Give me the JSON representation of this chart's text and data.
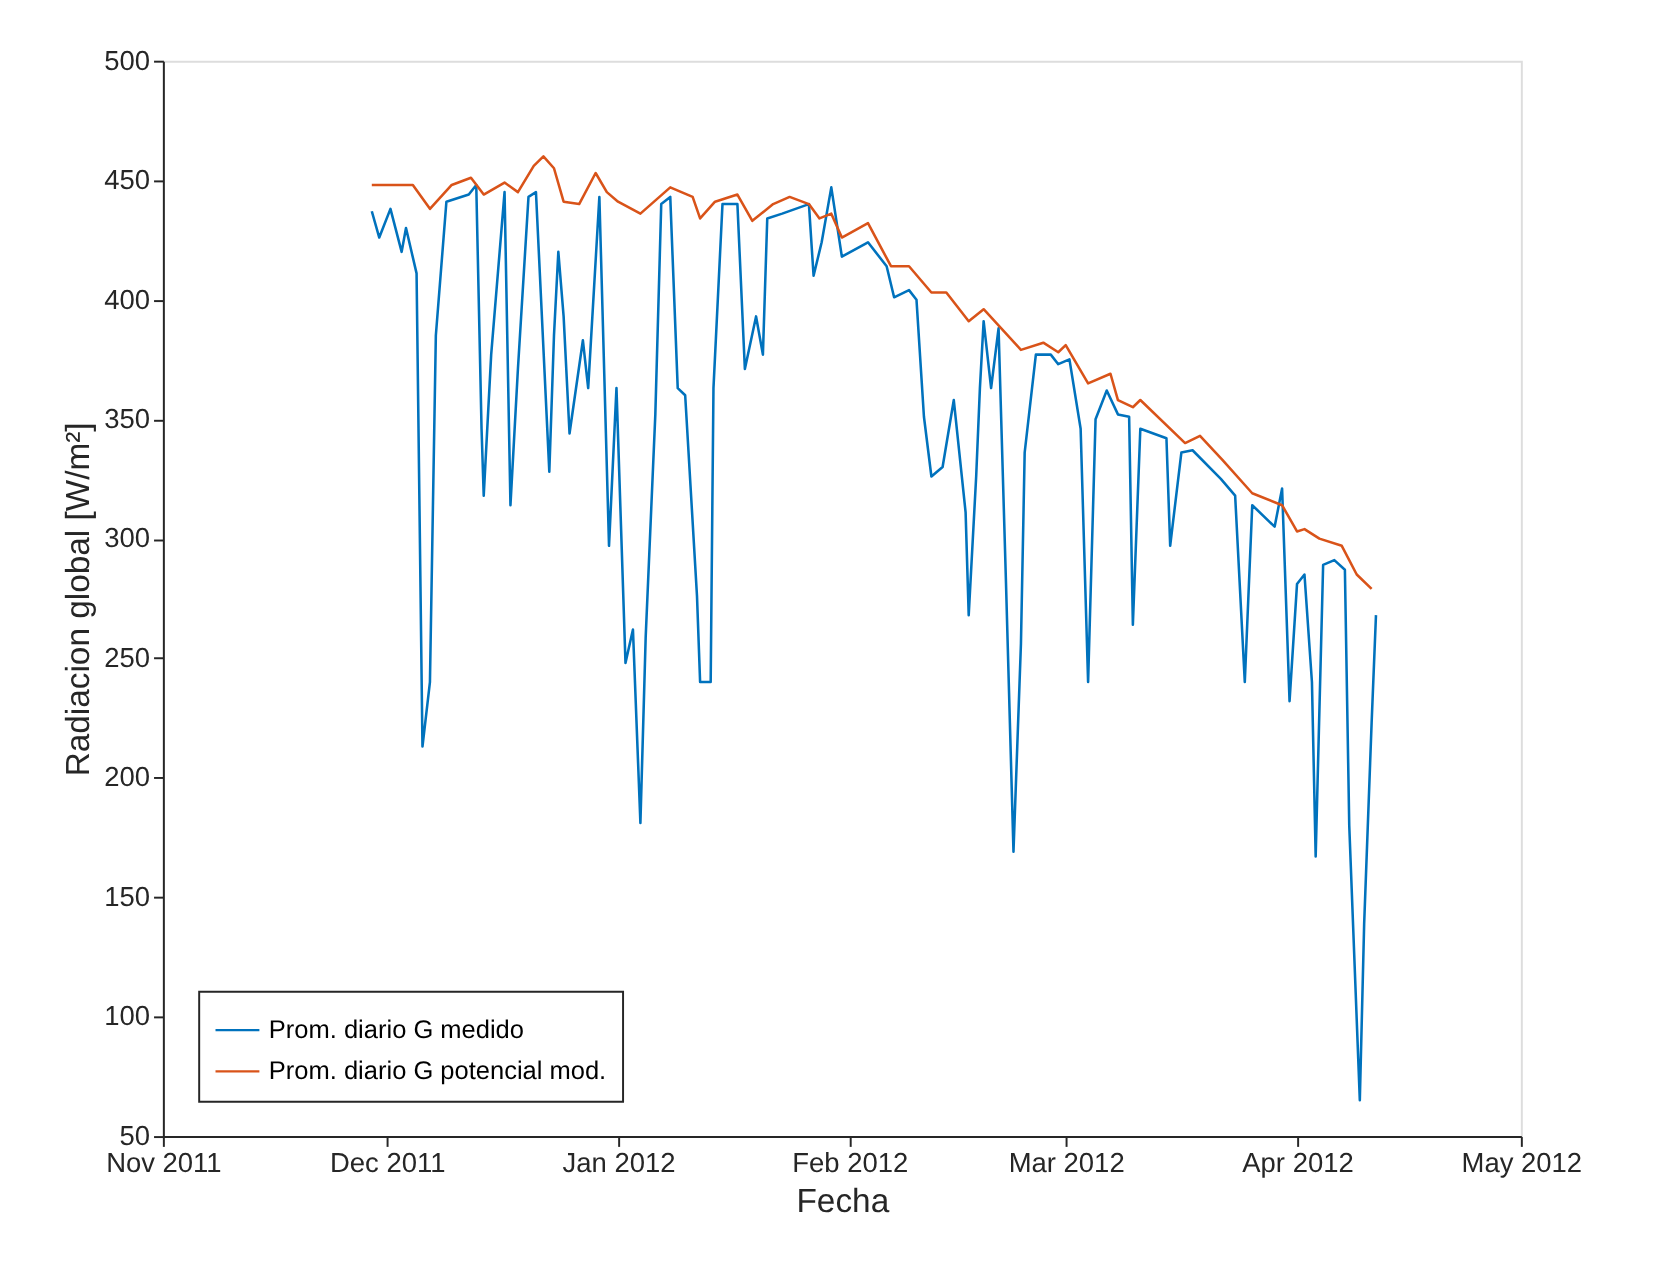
{
  "chart_data": {
    "type": "line",
    "xlabel": "Fecha",
    "ylabel": "Radiacion global [W/m²]",
    "xlim": [
      "2011-11-01",
      "2012-05-01"
    ],
    "xticks": [
      {
        "value": "2011-11-01",
        "label": "Nov 2011"
      },
      {
        "value": "2011-12-01",
        "label": "Dec 2011"
      },
      {
        "value": "2012-01-01",
        "label": "Jan 2012"
      },
      {
        "value": "2012-02-01",
        "label": "Feb 2012"
      },
      {
        "value": "2012-03-01",
        "label": "Mar 2012"
      },
      {
        "value": "2012-04-01",
        "label": "Apr 2012"
      },
      {
        "value": "2012-05-01",
        "label": "May 2012"
      }
    ],
    "ylim": [
      50,
      500
    ],
    "yticks": [
      50,
      100,
      150,
      200,
      250,
      300,
      350,
      400,
      450,
      500
    ],
    "grid": false,
    "legend": "bottom left",
    "line_style": "solid",
    "marker": "none",
    "series": [
      {
        "name": "Prom. diario G medido",
        "color": "#0072bd",
        "x": [
          "2011-11-29",
          "2011-11-30",
          "2011-12-01T12:00",
          "2011-12-03",
          "2011-12-03T14:00",
          "2011-12-05",
          "2011-12-05T19:00",
          "2011-12-06T19:00",
          "2011-12-07T14:00",
          "2011-12-09",
          "2011-12-12",
          "2011-12-13",
          "2011-12-13T17:00",
          "2011-12-14",
          "2011-12-15",
          "2011-12-16T19:00",
          "2011-12-17T14:00",
          "2011-12-18T14:00",
          "2011-12-20",
          "2011-12-21",
          "2011-12-22T19:00",
          "2011-12-23T10:00",
          "2011-12-24",
          "2011-12-24T17:00",
          "2011-12-25T12:00",
          "2011-12-27T07:00",
          "2011-12-28",
          "2011-12-29T12:00",
          "2011-12-30T19:00",
          "2011-12-31T19:00",
          "2012-01-02",
          "2012-01-03",
          "2012-01-04",
          "2012-01-04T17:00",
          "2012-01-06",
          "2012-01-06T19:00",
          "2012-01-08",
          "2012-01-09",
          "2012-01-10",
          "2012-01-11T14:00",
          "2012-01-12",
          "2012-01-13T10:00",
          "2012-01-13T19:00",
          "2012-01-15",
          "2012-01-17",
          "2012-01-18",
          "2012-01-19T12:00",
          "2012-01-20T10:00",
          "2012-01-21",
          "2012-01-23",
          "2012-01-26T14:00",
          "2012-01-27T05:00",
          "2012-01-28T07:00",
          "2012-01-29T14:00",
          "2012-01-31",
          "2012-02-03T12:00",
          "2012-02-06",
          "2012-02-07",
          "2012-02-09",
          "2012-02-10",
          "2012-02-11",
          "2012-02-12",
          "2012-02-13T12:00",
          "2012-02-15",
          "2012-02-16T14:00",
          "2012-02-17",
          "2012-02-18",
          "2012-02-18T12:00",
          "2012-02-19",
          "2012-02-20",
          "2012-02-21",
          "2012-02-22",
          "2012-02-23",
          "2012-02-24",
          "2012-02-24T12:00",
          "2012-02-26",
          "2012-02-28",
          "2012-02-29",
          "2012-03-01T12:00",
          "2012-03-03",
          "2012-03-04",
          "2012-03-05",
          "2012-03-06T12:00",
          "2012-03-08",
          "2012-03-09T12:00",
          "2012-03-10",
          "2012-03-11",
          "2012-03-14T12:00",
          "2012-03-15",
          "2012-03-16T12:00",
          "2012-03-18",
          "2012-03-21T19:00",
          "2012-03-23T17:00",
          "2012-03-25",
          "2012-03-26",
          "2012-03-29",
          "2012-03-30",
          "2012-03-31",
          "2012-04-01",
          "2012-04-02",
          "2012-04-03",
          "2012-04-03T12:00",
          "2012-04-04T12:00",
          "2012-04-06",
          "2012-04-07T10:00",
          "2012-04-08",
          "2012-04-09T10:00",
          "2012-04-10",
          "2012-04-11",
          "2012-04-11T14:00"
        ],
        "values": [
          437,
          426,
          438,
          420,
          430,
          411,
          213,
          240,
          385,
          441,
          444,
          448,
          346,
          318,
          377,
          445,
          314,
          371,
          443,
          445,
          328,
          385,
          420,
          393,
          344,
          383,
          363,
          443,
          297,
          363,
          248,
          262,
          181,
          259,
          352,
          440,
          443,
          363,
          360,
          276,
          240,
          240,
          363,
          440,
          440,
          371,
          393,
          377,
          434,
          436,
          440,
          410,
          424,
          447,
          418,
          424,
          414,
          401,
          404,
          400,
          351,
          326,
          330,
          358,
          311,
          268,
          326,
          363,
          391,
          363,
          388,
          281,
          169,
          256,
          336,
          377,
          377,
          373,
          375,
          346,
          240,
          350,
          362,
          352,
          351,
          264,
          346,
          342,
          297,
          336,
          337,
          325,
          318,
          240,
          314,
          305,
          321,
          232,
          281,
          285,
          240,
          167,
          289,
          291,
          287,
          180,
          65,
          139,
          223,
          268
        ]
      },
      {
        "name": "Prom. diario G potencial mod.",
        "color": "#d95319",
        "x": [
          "2011-11-29",
          "2011-12-04T12:00",
          "2011-12-06T19:00",
          "2011-12-09T17:00",
          "2011-12-12T07:00",
          "2011-12-14",
          "2011-12-16T19:00",
          "2011-12-18T14:00",
          "2011-12-20T17:00",
          "2011-12-22",
          "2011-12-23T10:00",
          "2011-12-24T17:00",
          "2011-12-26T19:00",
          "2011-12-29",
          "2011-12-30T12:00",
          "2012-01-01",
          "2012-01-04",
          "2012-01-08",
          "2012-01-11",
          "2012-01-12",
          "2012-01-14",
          "2012-01-17",
          "2012-01-19",
          "2012-01-21T19:00",
          "2012-01-24",
          "2012-01-26T14:00",
          "2012-01-28",
          "2012-01-29T14:00",
          "2012-01-31",
          "2012-02-03T12:00",
          "2012-02-06T14:00",
          "2012-02-09",
          "2012-02-12",
          "2012-02-14",
          "2012-02-17",
          "2012-02-19",
          "2012-02-24",
          "2012-02-27",
          "2012-02-29",
          "2012-03-01",
          "2012-03-04",
          "2012-03-07",
          "2012-03-08",
          "2012-03-10",
          "2012-03-11",
          "2012-03-17",
          "2012-03-19",
          "2012-03-22",
          "2012-03-26",
          "2012-03-30",
          "2012-04-01",
          "2012-04-02",
          "2012-04-04",
          "2012-04-07",
          "2012-04-09",
          "2012-04-11"
        ],
        "values": [
          448,
          448,
          438,
          448,
          451,
          444,
          449,
          445,
          456,
          460,
          455,
          441,
          440,
          453,
          445,
          441,
          436,
          447,
          443,
          434,
          441,
          444,
          433,
          440,
          443,
          440,
          434,
          436,
          426,
          432,
          414,
          414,
          403,
          403,
          391,
          396,
          379,
          382,
          378,
          381,
          365,
          369,
          358,
          355,
          358,
          340,
          343,
          333,
          319,
          314,
          303,
          304,
          300,
          297,
          285,
          279
        ]
      }
    ]
  }
}
